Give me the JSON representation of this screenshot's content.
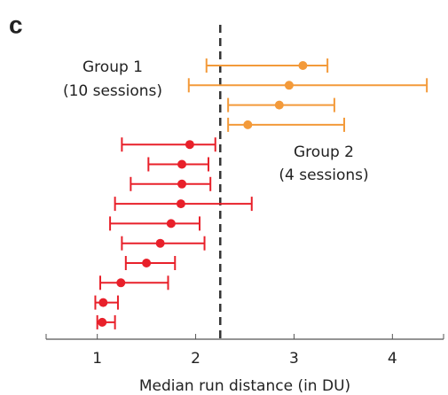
{
  "chart_data": {
    "type": "errorbar",
    "panel": "c",
    "xlabel": "Median run distance (in DU)",
    "xlim": [
      0.48,
      4.52
    ],
    "xticks": [
      1,
      2,
      3,
      4
    ],
    "reference_x": 2.25,
    "series": [
      {
        "name": "Group 2",
        "label": "(4 sessions)",
        "color": "#f39a3a",
        "values": [
          3.09,
          2.95,
          2.85,
          2.53
        ],
        "low": [
          2.11,
          1.93,
          2.33,
          2.33
        ],
        "high": [
          3.34,
          4.35,
          3.41,
          3.51
        ]
      },
      {
        "name": "Group 1",
        "label": "(10 sessions)",
        "color": "#e8202a",
        "values": [
          1.94,
          1.86,
          1.86,
          1.85,
          1.75,
          1.64,
          1.5,
          1.24,
          1.06,
          1.05
        ],
        "low": [
          1.25,
          1.52,
          1.34,
          1.18,
          1.13,
          1.25,
          1.29,
          1.03,
          0.98,
          1.0
        ],
        "high": [
          2.2,
          2.13,
          2.15,
          2.57,
          2.04,
          2.09,
          1.79,
          1.72,
          1.21,
          1.18
        ]
      }
    ]
  }
}
